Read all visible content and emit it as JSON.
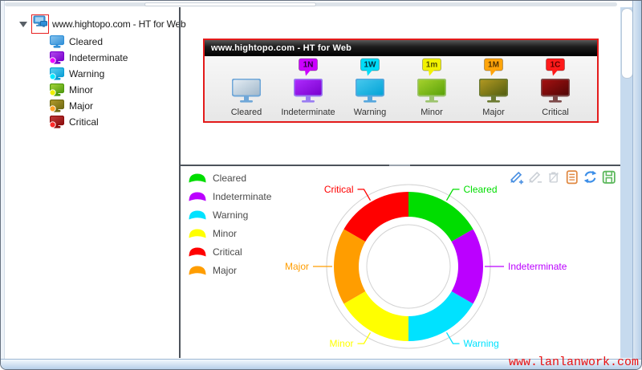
{
  "window": {
    "watermark": "www.lanlanwork.com"
  },
  "tree": {
    "root_label": "www.hightopo.com - HT for Web",
    "items": [
      {
        "id": "cleared",
        "label": "Cleared",
        "screen": "#2f8fd8",
        "screen2": "#8cc6ee",
        "dot": null
      },
      {
        "id": "indeterminate",
        "label": "Indeterminate",
        "screen": "#7a00cc",
        "screen2": "#b44cf0",
        "dot": "#f000ff"
      },
      {
        "id": "warning",
        "label": "Warning",
        "screen": "#0a9ed6",
        "screen2": "#5cd3f2",
        "dot": "#00e8ff"
      },
      {
        "id": "minor",
        "label": "Minor",
        "screen": "#4e9a0e",
        "screen2": "#a8d73a",
        "dot": "#eef000"
      },
      {
        "id": "major",
        "label": "Major",
        "screen": "#6e6a14",
        "screen2": "#b59c2c",
        "dot": "#ffa226"
      },
      {
        "id": "critical",
        "label": "Critical",
        "screen": "#8c0d0d",
        "screen2": "#c43c3c",
        "dot": "#ff2a2a"
      }
    ]
  },
  "alarm_panel": {
    "title": "www.hightopo.com - HT for Web",
    "border_color": "#e31b1b",
    "items": [
      {
        "id": "cleared",
        "label": "Cleared",
        "badge": null,
        "badge_bg": null,
        "badge_text_color": null,
        "screen": "#9fb6c9",
        "screen2": "#e6eef5",
        "frame": "#6fa7d8"
      },
      {
        "id": "indeterminate",
        "label": "Indeterminate",
        "badge": "1N",
        "badge_bg": "#cc00ff",
        "badge_text_color": "#2d0040",
        "screen": "#7700cc",
        "screen2": "#b02cff",
        "frame": "#9a7df2"
      },
      {
        "id": "warning",
        "label": "Warning",
        "badge": "1W",
        "badge_bg": "#00dcf8",
        "badge_text_color": "#003344",
        "screen": "#00a2d6",
        "screen2": "#49c9ee",
        "frame": "#57a7dd"
      },
      {
        "id": "minor",
        "label": "Minor",
        "badge": "1m",
        "badge_bg": "#f2f200",
        "badge_text_color": "#555500",
        "screen": "#57a008",
        "screen2": "#a8d32e",
        "frame": "#9dc46e"
      },
      {
        "id": "major",
        "label": "Major",
        "badge": "1M",
        "badge_bg": "#ffa40a",
        "badge_text_color": "#553300",
        "screen": "#4f5c10",
        "screen2": "#b59a22",
        "frame": "#6d7b33"
      },
      {
        "id": "critical",
        "label": "Critical",
        "badge": "1C",
        "badge_bg": "#ff1a1a",
        "badge_text_color": "#5d0000",
        "screen": "#4e0505",
        "screen2": "#a81212",
        "frame": "#7d4a4a"
      }
    ]
  },
  "toolbar": {
    "icons": [
      {
        "id": "edit-add",
        "name": "edit-add-icon",
        "color": "#4a90e2",
        "enabled": true
      },
      {
        "id": "edit-remove",
        "name": "edit-remove-icon",
        "color": "#ccd1d7",
        "enabled": false
      },
      {
        "id": "delete",
        "name": "delete-icon",
        "color": "#ccd1d7",
        "enabled": false
      },
      {
        "id": "log",
        "name": "log-icon",
        "color": "#e08a44",
        "enabled": true
      },
      {
        "id": "refresh",
        "name": "refresh-icon",
        "color": "#3d8fe8",
        "enabled": true
      },
      {
        "id": "save",
        "name": "save-icon",
        "color": "#5cb85c",
        "enabled": true
      }
    ]
  },
  "chart_data": {
    "type": "pie",
    "subtype": "donut",
    "categories": [
      "Cleared",
      "Indeterminate",
      "Warning",
      "Minor",
      "Major",
      "Critical"
    ],
    "values": [
      1,
      1,
      1,
      1,
      1,
      1
    ],
    "colors": [
      "#00dd00",
      "#bb00ff",
      "#00e2ff",
      "#ffff00",
      "#ff9d00",
      "#ff0000"
    ],
    "start_angle_deg": 0,
    "direction": "clockwise",
    "donut_inner_ratio": 0.67,
    "labels_with_leader_lines": true,
    "legend_position": "top-left",
    "legend": [
      {
        "label": "Cleared",
        "color": "#00dd00"
      },
      {
        "label": "Indeterminate",
        "color": "#bb00ff"
      },
      {
        "label": "Warning",
        "color": "#00e2ff"
      },
      {
        "label": "Minor",
        "color": "#ffff00"
      },
      {
        "label": "Critical",
        "color": "#ff0000"
      },
      {
        "label": "Major",
        "color": "#ff9d00"
      }
    ]
  }
}
